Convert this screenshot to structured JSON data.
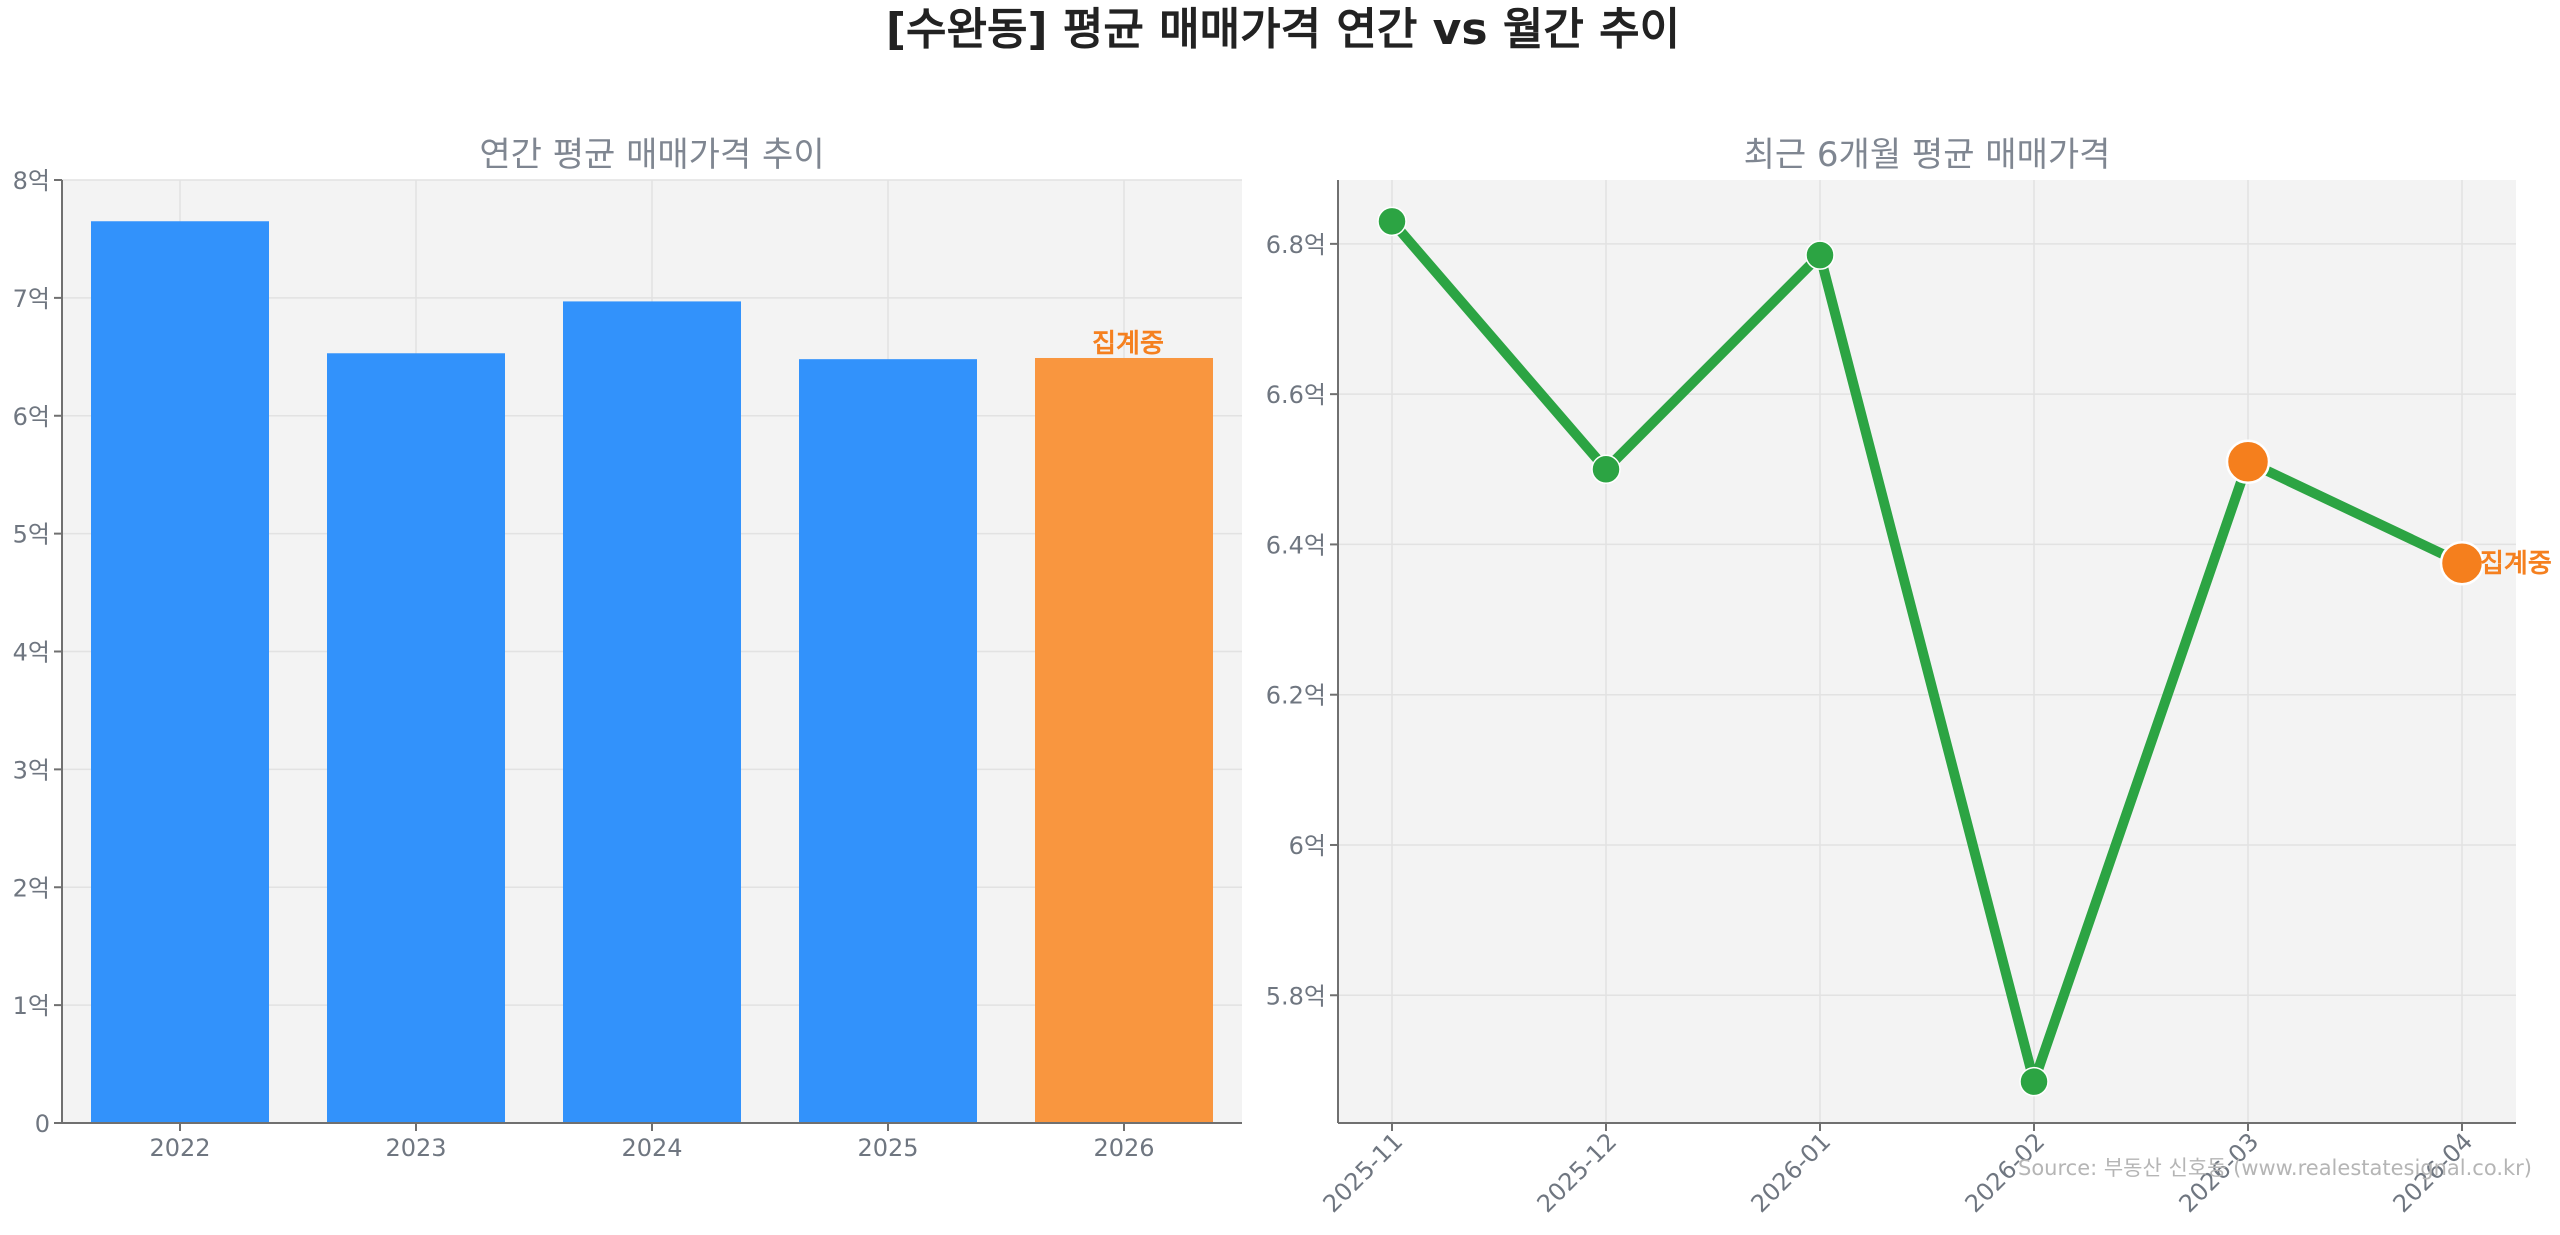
{
  "suptitle": "[수완동] 평균 매매가격 연간 vs 월간 추이",
  "source_note": "Source: 부동산 신호등 (www.realestatesignal.co.kr)",
  "colors": {
    "bar": "#3292fb",
    "bar_highlight": "#f9963f",
    "line": "#2ca443",
    "marker_highlight": "#f57f1d",
    "status_text": "#f5801f"
  },
  "chart_data": [
    {
      "type": "bar",
      "title": "연간 평균 매매가격 추이",
      "categories": [
        "2022",
        "2023",
        "2024",
        "2025",
        "2026"
      ],
      "values": [
        7.65,
        6.53,
        6.97,
        6.48,
        6.49
      ],
      "unit": "억",
      "ylim": [
        0,
        8
      ],
      "yticks": [
        0,
        1,
        2,
        3,
        4,
        5,
        6,
        7,
        8
      ],
      "ytick_labels": [
        "0",
        "1억",
        "2억",
        "3억",
        "4억",
        "5억",
        "6억",
        "7억",
        "8억"
      ],
      "highlight_index": 4,
      "annotation": {
        "index": 4,
        "text": "집계중"
      },
      "grid": true
    },
    {
      "type": "line",
      "title": "최근 6개월 평균 매매가격",
      "x": [
        "2025-11",
        "2025-12",
        "2026-01",
        "2026-02",
        "2026-03",
        "2026-04"
      ],
      "values": [
        6.83,
        6.5,
        6.785,
        5.685,
        6.51,
        6.375
      ],
      "unit": "억",
      "ylim": [
        5.63,
        6.885
      ],
      "yticks": [
        5.8,
        6.0,
        6.2,
        6.4,
        6.6,
        6.8
      ],
      "ytick_labels": [
        "5.8억",
        "6억",
        "6.2억",
        "6.4억",
        "6.6억",
        "6.8억"
      ],
      "highlight_indices": [
        4,
        5
      ],
      "annotation": {
        "index": 5,
        "text": "집계중"
      },
      "grid": true
    }
  ]
}
